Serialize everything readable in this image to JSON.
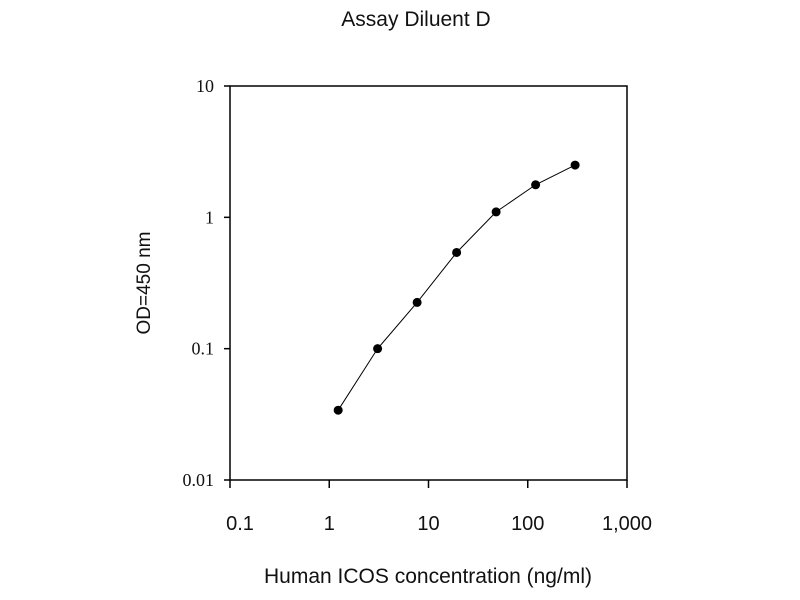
{
  "chart_data": {
    "type": "line",
    "title": "Assay Diluent D",
    "xlabel": "Human ICOS concentration (ng/ml)",
    "ylabel": "OD=450 nm",
    "xscale": "log",
    "yscale": "log",
    "xlim": [
      0.1,
      1000
    ],
    "ylim": [
      0.01,
      10
    ],
    "xticks": [
      0.1,
      1,
      10,
      100,
      1000
    ],
    "xtick_labels": [
      "0.1",
      "1",
      "10",
      "100",
      "1,000"
    ],
    "yticks": [
      0.01,
      0.1,
      1,
      10
    ],
    "ytick_labels": [
      "0.01",
      "0.1",
      "1",
      "10"
    ],
    "grid": false,
    "series": [
      {
        "name": "Assay Diluent D",
        "x": [
          1.23,
          3.07,
          7.68,
          19.2,
          48,
          120,
          300
        ],
        "y": [
          0.034,
          0.1,
          0.225,
          0.54,
          1.1,
          1.77,
          2.5
        ],
        "color": "#000000"
      }
    ]
  }
}
